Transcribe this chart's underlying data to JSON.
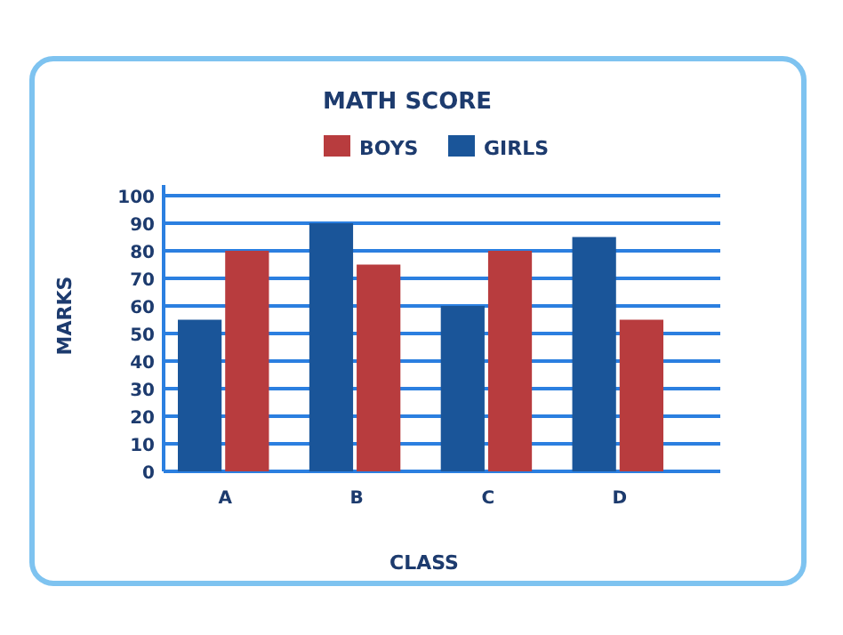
{
  "chart_data": {
    "type": "bar",
    "title": "MATH SCORE",
    "xlabel": "CLASS",
    "ylabel": "MARKS",
    "categories": [
      "A",
      "B",
      "C",
      "D"
    ],
    "series": [
      {
        "name": "GIRLS",
        "color": "#1a5599",
        "values": [
          55,
          90,
          60,
          85
        ]
      },
      {
        "name": "BOYS",
        "color": "#b83c3e",
        "values": [
          80,
          75,
          80,
          55
        ]
      }
    ],
    "ylim": [
      0,
      100
    ],
    "yticks": [
      0,
      10,
      20,
      30,
      40,
      50,
      60,
      70,
      80,
      90,
      100
    ],
    "grid": "y",
    "legend": "top"
  }
}
